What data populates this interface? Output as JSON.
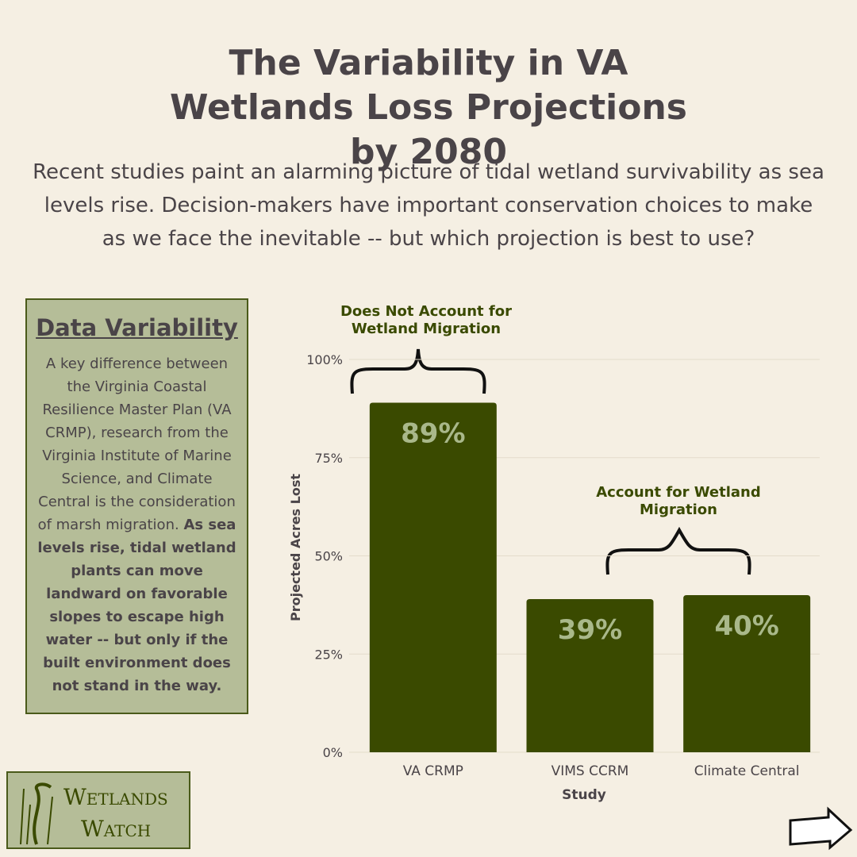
{
  "title": "The Variability in VA Wetlands Loss Projections by 2080",
  "subtitle": "Recent studies paint an alarming picture of tidal wetland survivability as sea levels rise. Decision-makers have important conservation choices to make as we face the inevitable -- but which projection is best to use?",
  "sidebar": {
    "heading": "Data Variability",
    "text": "A key difference between the Virginia Coastal Resilience Master Plan (VA CRMP), research from the Virginia Institute of Marine Science, and Climate Central is the consideration of marsh migration.",
    "bold_text": "As sea levels rise, tidal wetland plants can move landward on favorable slopes to escape high water -- but only if the built environment does not stand in the way."
  },
  "logo": {
    "line1": "Wetlands",
    "line2": "Watch"
  },
  "chart_data": {
    "type": "bar",
    "categories": [
      "VA CRMP",
      "VIMS CCRM",
      "Climate Central"
    ],
    "values": [
      89,
      39,
      40
    ],
    "value_labels": [
      "89%",
      "39%",
      "40%"
    ],
    "color": "#3a4a00",
    "xlabel": "Study",
    "ylabel": "Projected Acres Lost",
    "ylim": [
      0,
      100
    ],
    "yticks": [
      {
        "value": 0,
        "label": "0%"
      },
      {
        "value": 25,
        "label": "25%"
      },
      {
        "value": 50,
        "label": "50%"
      },
      {
        "value": 75,
        "label": "75%"
      },
      {
        "value": 100,
        "label": "100%"
      }
    ],
    "grid": true,
    "annotations": [
      "Does Not Account for Wetland Migration",
      "Account for Wetland Migration"
    ]
  }
}
